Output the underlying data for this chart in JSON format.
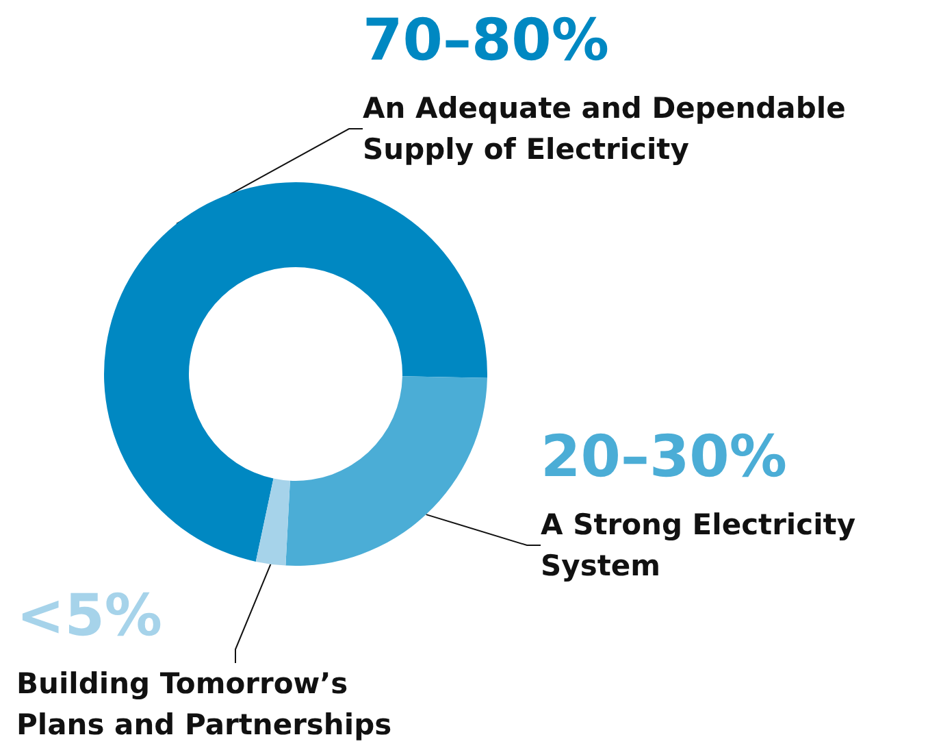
{
  "chart_data": {
    "type": "donut",
    "categories": [
      "An Adequate and Dependable Supply of Electricity",
      "A Strong Electricity System",
      "Building Tomorrow’s Plans and Partnerships"
    ],
    "values": [
      72,
      25.5,
      2.5
    ],
    "annotations": [
      "70–80%",
      "20–30%",
      "<5%"
    ],
    "colors": [
      "#0088c2",
      "#4badd6",
      "#a6d3ea"
    ],
    "legend": false
  }
}
